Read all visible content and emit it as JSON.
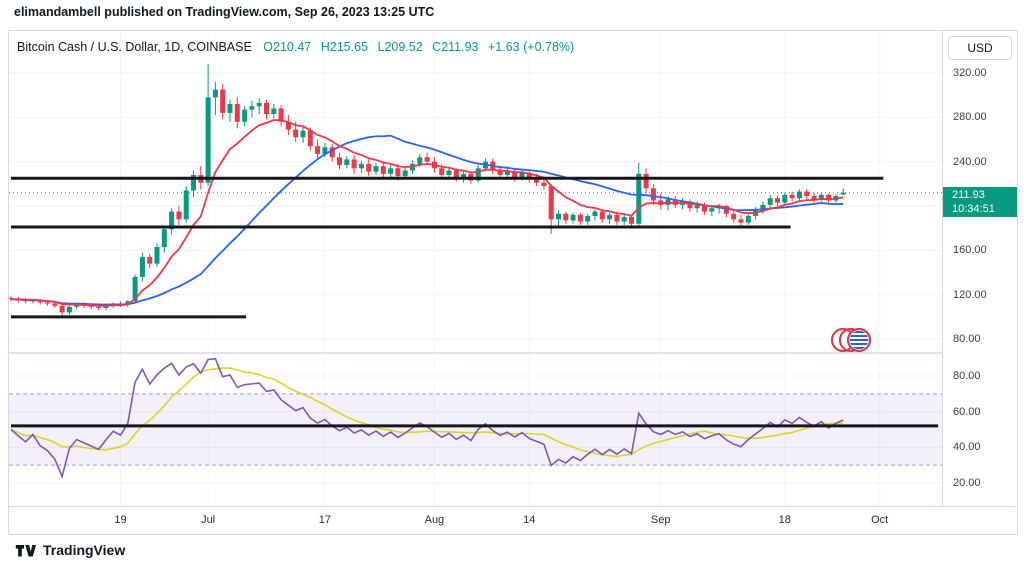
{
  "header": {
    "title": "elimandambell published on TradingView.com, Sep 26, 2023 13:25 UTC"
  },
  "legend": {
    "symbol": "Bitcoin Cash / U.S. Dollar, 1D, COINBASE",
    "o": "O210.47",
    "h": "H215.65",
    "l": "L209.52",
    "c": "C211.93",
    "change": "+1.63 (+0.78%)"
  },
  "price_scale": {
    "currency_button": "USD",
    "labels": [
      {
        "text": "320.00",
        "value": 320
      },
      {
        "text": "280.00",
        "value": 280
      },
      {
        "text": "240.00",
        "value": 240
      },
      {
        "text": "160.00",
        "value": 160
      },
      {
        "text": "120.00",
        "value": 120
      },
      {
        "text": "80.00",
        "value": 80
      }
    ],
    "last_price": {
      "text": "211.93",
      "countdown": "10:34:51",
      "value": 211.93,
      "color": "#089981"
    }
  },
  "rsi_scale": {
    "labels": [
      {
        "text": "80.00",
        "value": 80
      },
      {
        "text": "60.00",
        "value": 60
      },
      {
        "text": "40.00",
        "value": 40
      },
      {
        "text": "20.00",
        "value": 20
      }
    ]
  },
  "time_axis": {
    "labels": [
      {
        "text": "19",
        "idx": 15
      },
      {
        "text": "Jul",
        "idx": 27
      },
      {
        "text": "17",
        "idx": 43
      },
      {
        "text": "Aug",
        "idx": 58
      },
      {
        "text": "14",
        "idx": 71
      },
      {
        "text": "Sep",
        "idx": 89
      },
      {
        "text": "18",
        "idx": 106
      },
      {
        "text": "Oct",
        "idx": 119
      }
    ]
  },
  "footer": {
    "brand": "TradingView"
  },
  "chart_data": {
    "type": "candlestick",
    "title": "Bitcoin Cash / U.S. Dollar",
    "interval": "1D",
    "exchange": "COINBASE",
    "last_bar": {
      "open": 210.47,
      "high": 215.65,
      "low": 209.52,
      "close": 211.93,
      "change": 1.63,
      "change_pct": 0.78
    },
    "price_axis": {
      "visible_range": [
        60,
        345
      ],
      "grid": [
        320,
        280,
        240,
        200,
        160,
        120,
        80
      ]
    },
    "candle_format": [
      "open",
      "high",
      "low",
      "close"
    ],
    "candles": [
      [
        117,
        119,
        114,
        116
      ],
      [
        116,
        118,
        113,
        115
      ],
      [
        115,
        117,
        112,
        114
      ],
      [
        114,
        116,
        112,
        115
      ],
      [
        115,
        116,
        111,
        113
      ],
      [
        113,
        115,
        110,
        112
      ],
      [
        112,
        114,
        108,
        110
      ],
      [
        110,
        112,
        100,
        104
      ],
      [
        104,
        110,
        102,
        109
      ],
      [
        109,
        112,
        107,
        111
      ],
      [
        111,
        113,
        108,
        110
      ],
      [
        110,
        112,
        107,
        109
      ],
      [
        109,
        111,
        106,
        108
      ],
      [
        108,
        111,
        106,
        110
      ],
      [
        110,
        113,
        108,
        112
      ],
      [
        112,
        114,
        109,
        111
      ],
      [
        111,
        115,
        109,
        114
      ],
      [
        114,
        138,
        112,
        136
      ],
      [
        136,
        158,
        132,
        154
      ],
      [
        154,
        157,
        144,
        148
      ],
      [
        148,
        166,
        145,
        163
      ],
      [
        163,
        182,
        158,
        179
      ],
      [
        179,
        198,
        174,
        195
      ],
      [
        195,
        200,
        183,
        188
      ],
      [
        188,
        218,
        185,
        214
      ],
      [
        214,
        232,
        208,
        228
      ],
      [
        228,
        236,
        215,
        221
      ],
      [
        221,
        328,
        218,
        298
      ],
      [
        298,
        312,
        282,
        305
      ],
      [
        305,
        310,
        278,
        284
      ],
      [
        284,
        296,
        276,
        292
      ],
      [
        292,
        298,
        270,
        276
      ],
      [
        276,
        290,
        272,
        287
      ],
      [
        287,
        295,
        280,
        290
      ],
      [
        290,
        297,
        283,
        293
      ],
      [
        293,
        296,
        278,
        283
      ],
      [
        283,
        292,
        279,
        288
      ],
      [
        288,
        291,
        272,
        276
      ],
      [
        276,
        282,
        264,
        269
      ],
      [
        269,
        276,
        258,
        262
      ],
      [
        262,
        272,
        257,
        268
      ],
      [
        268,
        271,
        250,
        254
      ],
      [
        254,
        260,
        243,
        247
      ],
      [
        247,
        257,
        244,
        253
      ],
      [
        253,
        256,
        240,
        244
      ],
      [
        244,
        248,
        233,
        237
      ],
      [
        237,
        245,
        234,
        242
      ],
      [
        242,
        246,
        229,
        234
      ],
      [
        234,
        241,
        230,
        238
      ],
      [
        238,
        242,
        227,
        231
      ],
      [
        231,
        239,
        228,
        236
      ],
      [
        236,
        240,
        225,
        229
      ],
      [
        229,
        237,
        226,
        234
      ],
      [
        234,
        238,
        223,
        227
      ],
      [
        227,
        235,
        224,
        232
      ],
      [
        232,
        241,
        229,
        238
      ],
      [
        238,
        247,
        235,
        244
      ],
      [
        244,
        248,
        237,
        240
      ],
      [
        240,
        244,
        230,
        234
      ],
      [
        234,
        238,
        225,
        228
      ],
      [
        228,
        235,
        224,
        232
      ],
      [
        232,
        234,
        222,
        225
      ],
      [
        225,
        232,
        221,
        229
      ],
      [
        229,
        231,
        220,
        223
      ],
      [
        223,
        237,
        221,
        234
      ],
      [
        234,
        243,
        231,
        240
      ],
      [
        240,
        243,
        229,
        233
      ],
      [
        233,
        236,
        224,
        228
      ],
      [
        228,
        234,
        225,
        231
      ],
      [
        231,
        233,
        222,
        226
      ],
      [
        226,
        232,
        223,
        230
      ],
      [
        230,
        233,
        221,
        224
      ],
      [
        224,
        229,
        218,
        221
      ],
      [
        221,
        226,
        215,
        218
      ],
      [
        218,
        220,
        175,
        188
      ],
      [
        188,
        196,
        180,
        193
      ],
      [
        193,
        195,
        184,
        187
      ],
      [
        187,
        194,
        184,
        192
      ],
      [
        192,
        194,
        183,
        186
      ],
      [
        186,
        193,
        183,
        191
      ],
      [
        191,
        197,
        187,
        195
      ],
      [
        195,
        196,
        185,
        188
      ],
      [
        188,
        194,
        184,
        192
      ],
      [
        192,
        193,
        183,
        186
      ],
      [
        186,
        192,
        183,
        190
      ],
      [
        190,
        191,
        181,
        184
      ],
      [
        184,
        239,
        182,
        229
      ],
      [
        229,
        234,
        212,
        216
      ],
      [
        216,
        220,
        201,
        205
      ],
      [
        205,
        211,
        197,
        201
      ],
      [
        201,
        209,
        196,
        206
      ],
      [
        206,
        209,
        198,
        201
      ],
      [
        201,
        207,
        197,
        204
      ],
      [
        204,
        206,
        195,
        198
      ],
      [
        198,
        204,
        194,
        201
      ],
      [
        201,
        203,
        192,
        195
      ],
      [
        195,
        201,
        191,
        198
      ],
      [
        198,
        202,
        193,
        200
      ],
      [
        200,
        201,
        190,
        193
      ],
      [
        193,
        196,
        185,
        188
      ],
      [
        188,
        192,
        182,
        185
      ],
      [
        185,
        194,
        183,
        191
      ],
      [
        191,
        199,
        188,
        196
      ],
      [
        196,
        204,
        193,
        201
      ],
      [
        201,
        210,
        198,
        207
      ],
      [
        207,
        209,
        200,
        203
      ],
      [
        203,
        212,
        201,
        210
      ],
      [
        210,
        213,
        204,
        207
      ],
      [
        207,
        215,
        205,
        213
      ],
      [
        213,
        215,
        206,
        209
      ],
      [
        209,
        212,
        203,
        206
      ],
      [
        206,
        212,
        204,
        210
      ],
      [
        210,
        211,
        202,
        205
      ],
      [
        205,
        211,
        203,
        209
      ],
      [
        210.47,
        215.65,
        209.52,
        211.93
      ]
    ],
    "overlays": [
      {
        "name": "fast-ma",
        "type": "ema",
        "period": 9,
        "color": "#F23645"
      },
      {
        "name": "slow-ma",
        "type": "sma",
        "period": 26,
        "color": "#2962FF"
      }
    ],
    "rsi": {
      "name": "RSI",
      "period": 14,
      "bands": [
        30,
        70
      ],
      "range": [
        0,
        100
      ],
      "line_color": "#7E57C2",
      "ma_color": "#DCD52A",
      "ma_period": 10
    },
    "drawings": {
      "hlines": [
        {
          "pane": "main",
          "price": 225,
          "x1_idx": 0,
          "x2_idx": 119.5
        },
        {
          "pane": "main",
          "price": 181,
          "x1_idx": 0,
          "x2_idx": 106.8
        },
        {
          "pane": "main",
          "price": 100,
          "x1_idx": 0,
          "x2_idx": 32.2
        },
        {
          "pane": "rsi",
          "value": 52,
          "x1_idx": 0,
          "x2_idx": 127
        }
      ]
    },
    "colors": {
      "up": "#089981",
      "down": "#F23645",
      "drawing": "#15171c",
      "current_price_line": "#089981"
    }
  }
}
